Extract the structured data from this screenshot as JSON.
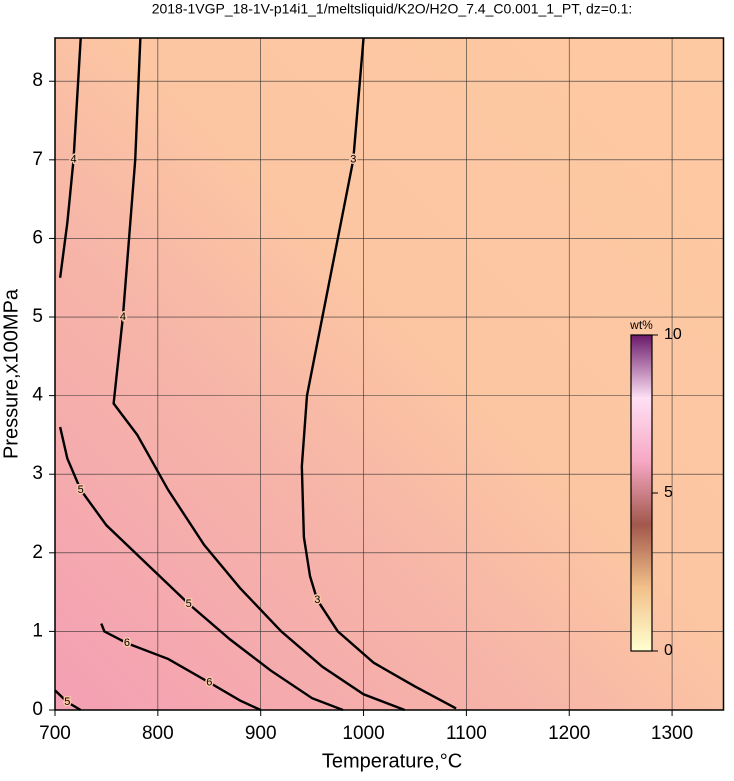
{
  "chart_data": {
    "type": "contour",
    "title": "2018-1VGP_18-1V-p14i1_1/meltsliquid/K2O/H2O_7.4_C0.001_1_PT, dz=0.1:",
    "x_label": "Temperature,°C",
    "y_label": "Pressure,x100MPa",
    "xlim": [
      700,
      1350
    ],
    "ylim": [
      0,
      8.55
    ],
    "xticks": [
      700,
      800,
      900,
      1000,
      1100,
      1200,
      1300
    ],
    "yticks": [
      0,
      1,
      2,
      3,
      4,
      5,
      6,
      7,
      8
    ],
    "grid": true,
    "contours": [
      {
        "level": 3,
        "x": [
          1000,
          990,
          975,
          960,
          945,
          940,
          942,
          948,
          955,
          975,
          1010,
          1050,
          1090
        ],
        "y": [
          8.55,
          7,
          6,
          5,
          4,
          3.1,
          2.2,
          1.7,
          1.4,
          1.0,
          0.6,
          0.3,
          0.02
        ]
      },
      {
        "level": 4,
        "x": [
          783,
          778,
          772,
          766,
          757,
          780,
          810,
          845,
          880,
          920,
          960,
          1000,
          1040
        ],
        "y": [
          8.55,
          7,
          6,
          5,
          3.9,
          3.5,
          2.8,
          2.1,
          1.55,
          1.0,
          0.55,
          0.2,
          0
        ]
      },
      {
        "level": 4,
        "x": [
          725,
          718,
          712,
          705
        ],
        "y": [
          8.55,
          7,
          6.2,
          5.5
        ]
      },
      {
        "level": 5,
        "x": [
          705,
          712,
          725,
          750,
          790,
          830,
          870,
          910,
          950,
          980
        ],
        "y": [
          3.6,
          3.2,
          2.8,
          2.35,
          1.85,
          1.35,
          0.9,
          0.5,
          0.15,
          0
        ]
      },
      {
        "level": 6,
        "x": [
          745,
          748,
          770,
          810,
          850,
          880,
          900
        ],
        "y": [
          1.1,
          1.0,
          0.85,
          0.65,
          0.35,
          0.12,
          0
        ]
      },
      {
        "level": 5,
        "x": [
          700,
          712,
          725
        ],
        "y": [
          0.25,
          0.1,
          0
        ]
      }
    ],
    "colorbar": {
      "label": "wt%",
      "lim": [
        0,
        10
      ],
      "ticks": [
        0,
        5,
        10
      ],
      "colors": [
        "#ffffd0",
        "#f2c08a",
        "#a2584c",
        "#f6a8c4",
        "#ffe0f4",
        "#6a1a6a"
      ]
    }
  }
}
